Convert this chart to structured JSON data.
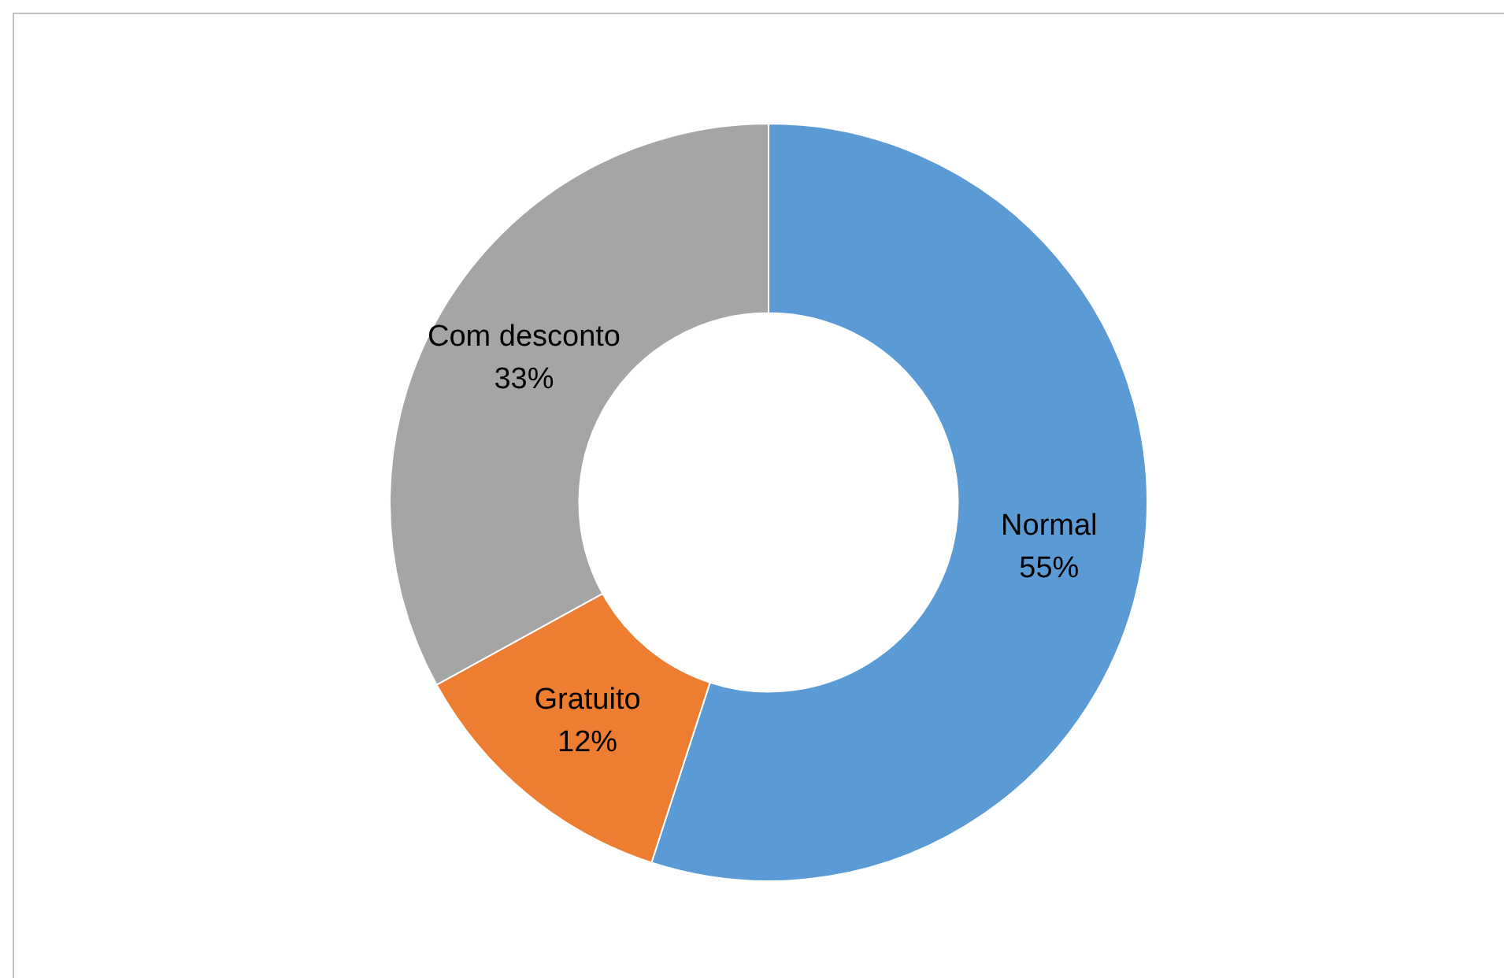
{
  "chart_data": {
    "type": "donut",
    "categories": [
      "Normal",
      "Gratuito",
      "Com desconto"
    ],
    "values": [
      55,
      12,
      33
    ],
    "value_labels": [
      "55%",
      "12%",
      "33%"
    ],
    "colors": [
      "#5b9bd5",
      "#ed7d31",
      "#a5a5a5"
    ],
    "legend": false
  }
}
